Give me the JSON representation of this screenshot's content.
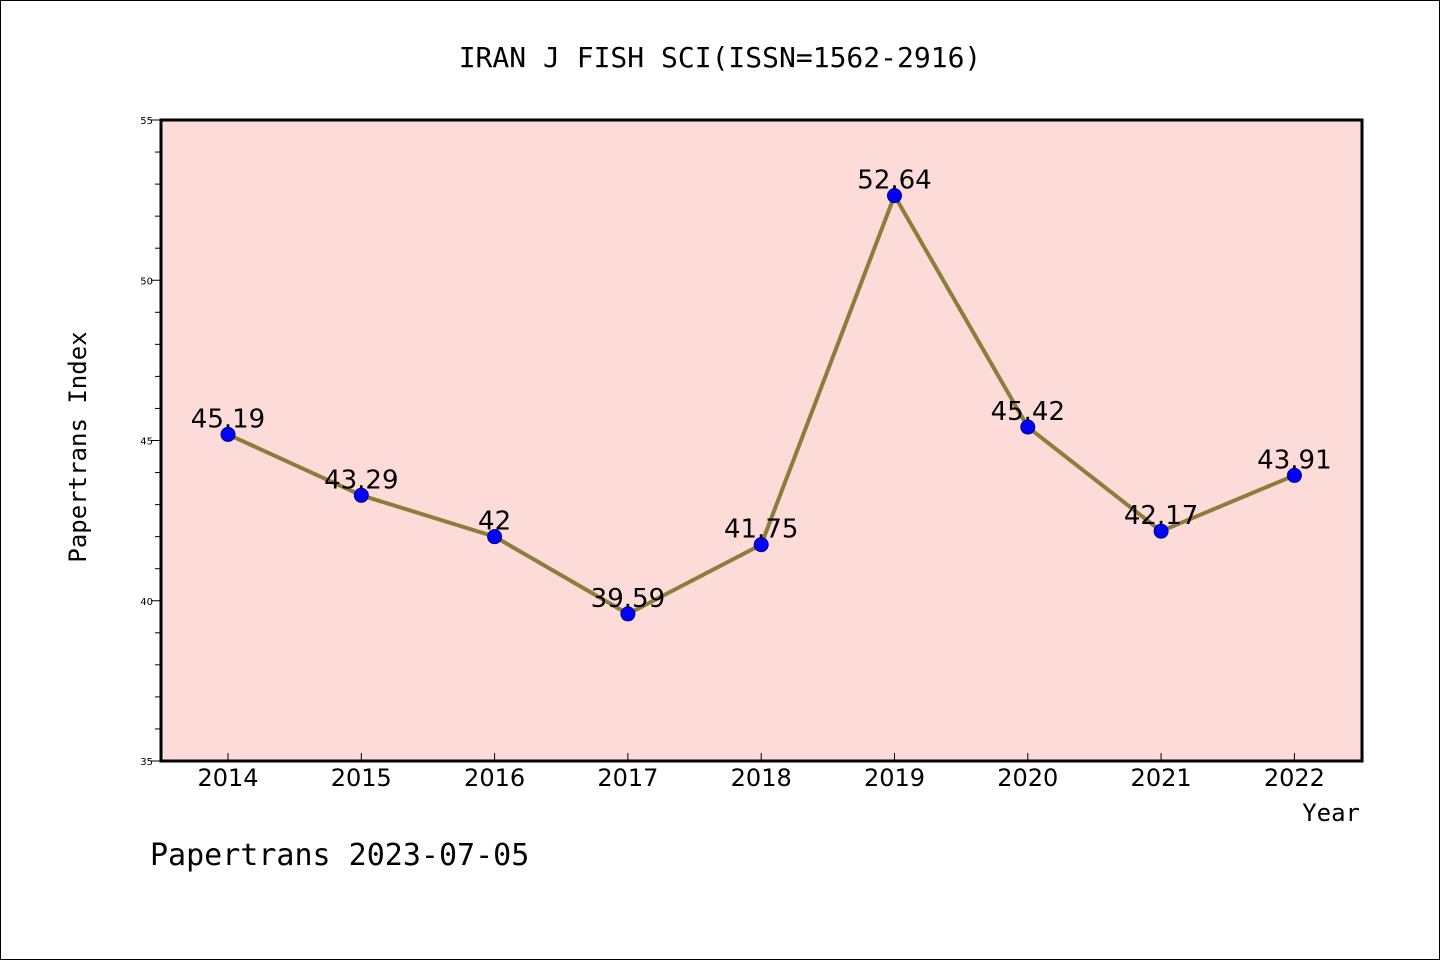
{
  "chart_data": {
    "type": "line",
    "title": "IRAN J FISH SCI(ISSN=1562-2916)",
    "xlabel": "Year",
    "ylabel": "Papertrans Index",
    "footer": "Papertrans 2023-07-05",
    "categories": [
      "2014",
      "2015",
      "2016",
      "2017",
      "2018",
      "2019",
      "2020",
      "2021",
      "2022"
    ],
    "series": [
      {
        "values": [
          45.19,
          43.29,
          42,
          39.59,
          41.75,
          52.64,
          45.42,
          42.17,
          43.91
        ],
        "labels": [
          "45.19",
          "43.29",
          "42",
          "39.59",
          "41.75",
          "52.64",
          "45.42",
          "42.17",
          "43.91"
        ]
      }
    ],
    "ylim": [
      35,
      55
    ],
    "yticks": [
      35,
      40,
      45,
      50,
      55
    ],
    "ytick_labels": [
      "35",
      "40",
      "45",
      "50",
      "55"
    ],
    "grid": false,
    "colors": {
      "plot_background": "#FDDBD8",
      "line": "#8B7D3A",
      "marker": "#0000FF",
      "marker_edge": "#00008B",
      "axes": "#000000"
    }
  }
}
